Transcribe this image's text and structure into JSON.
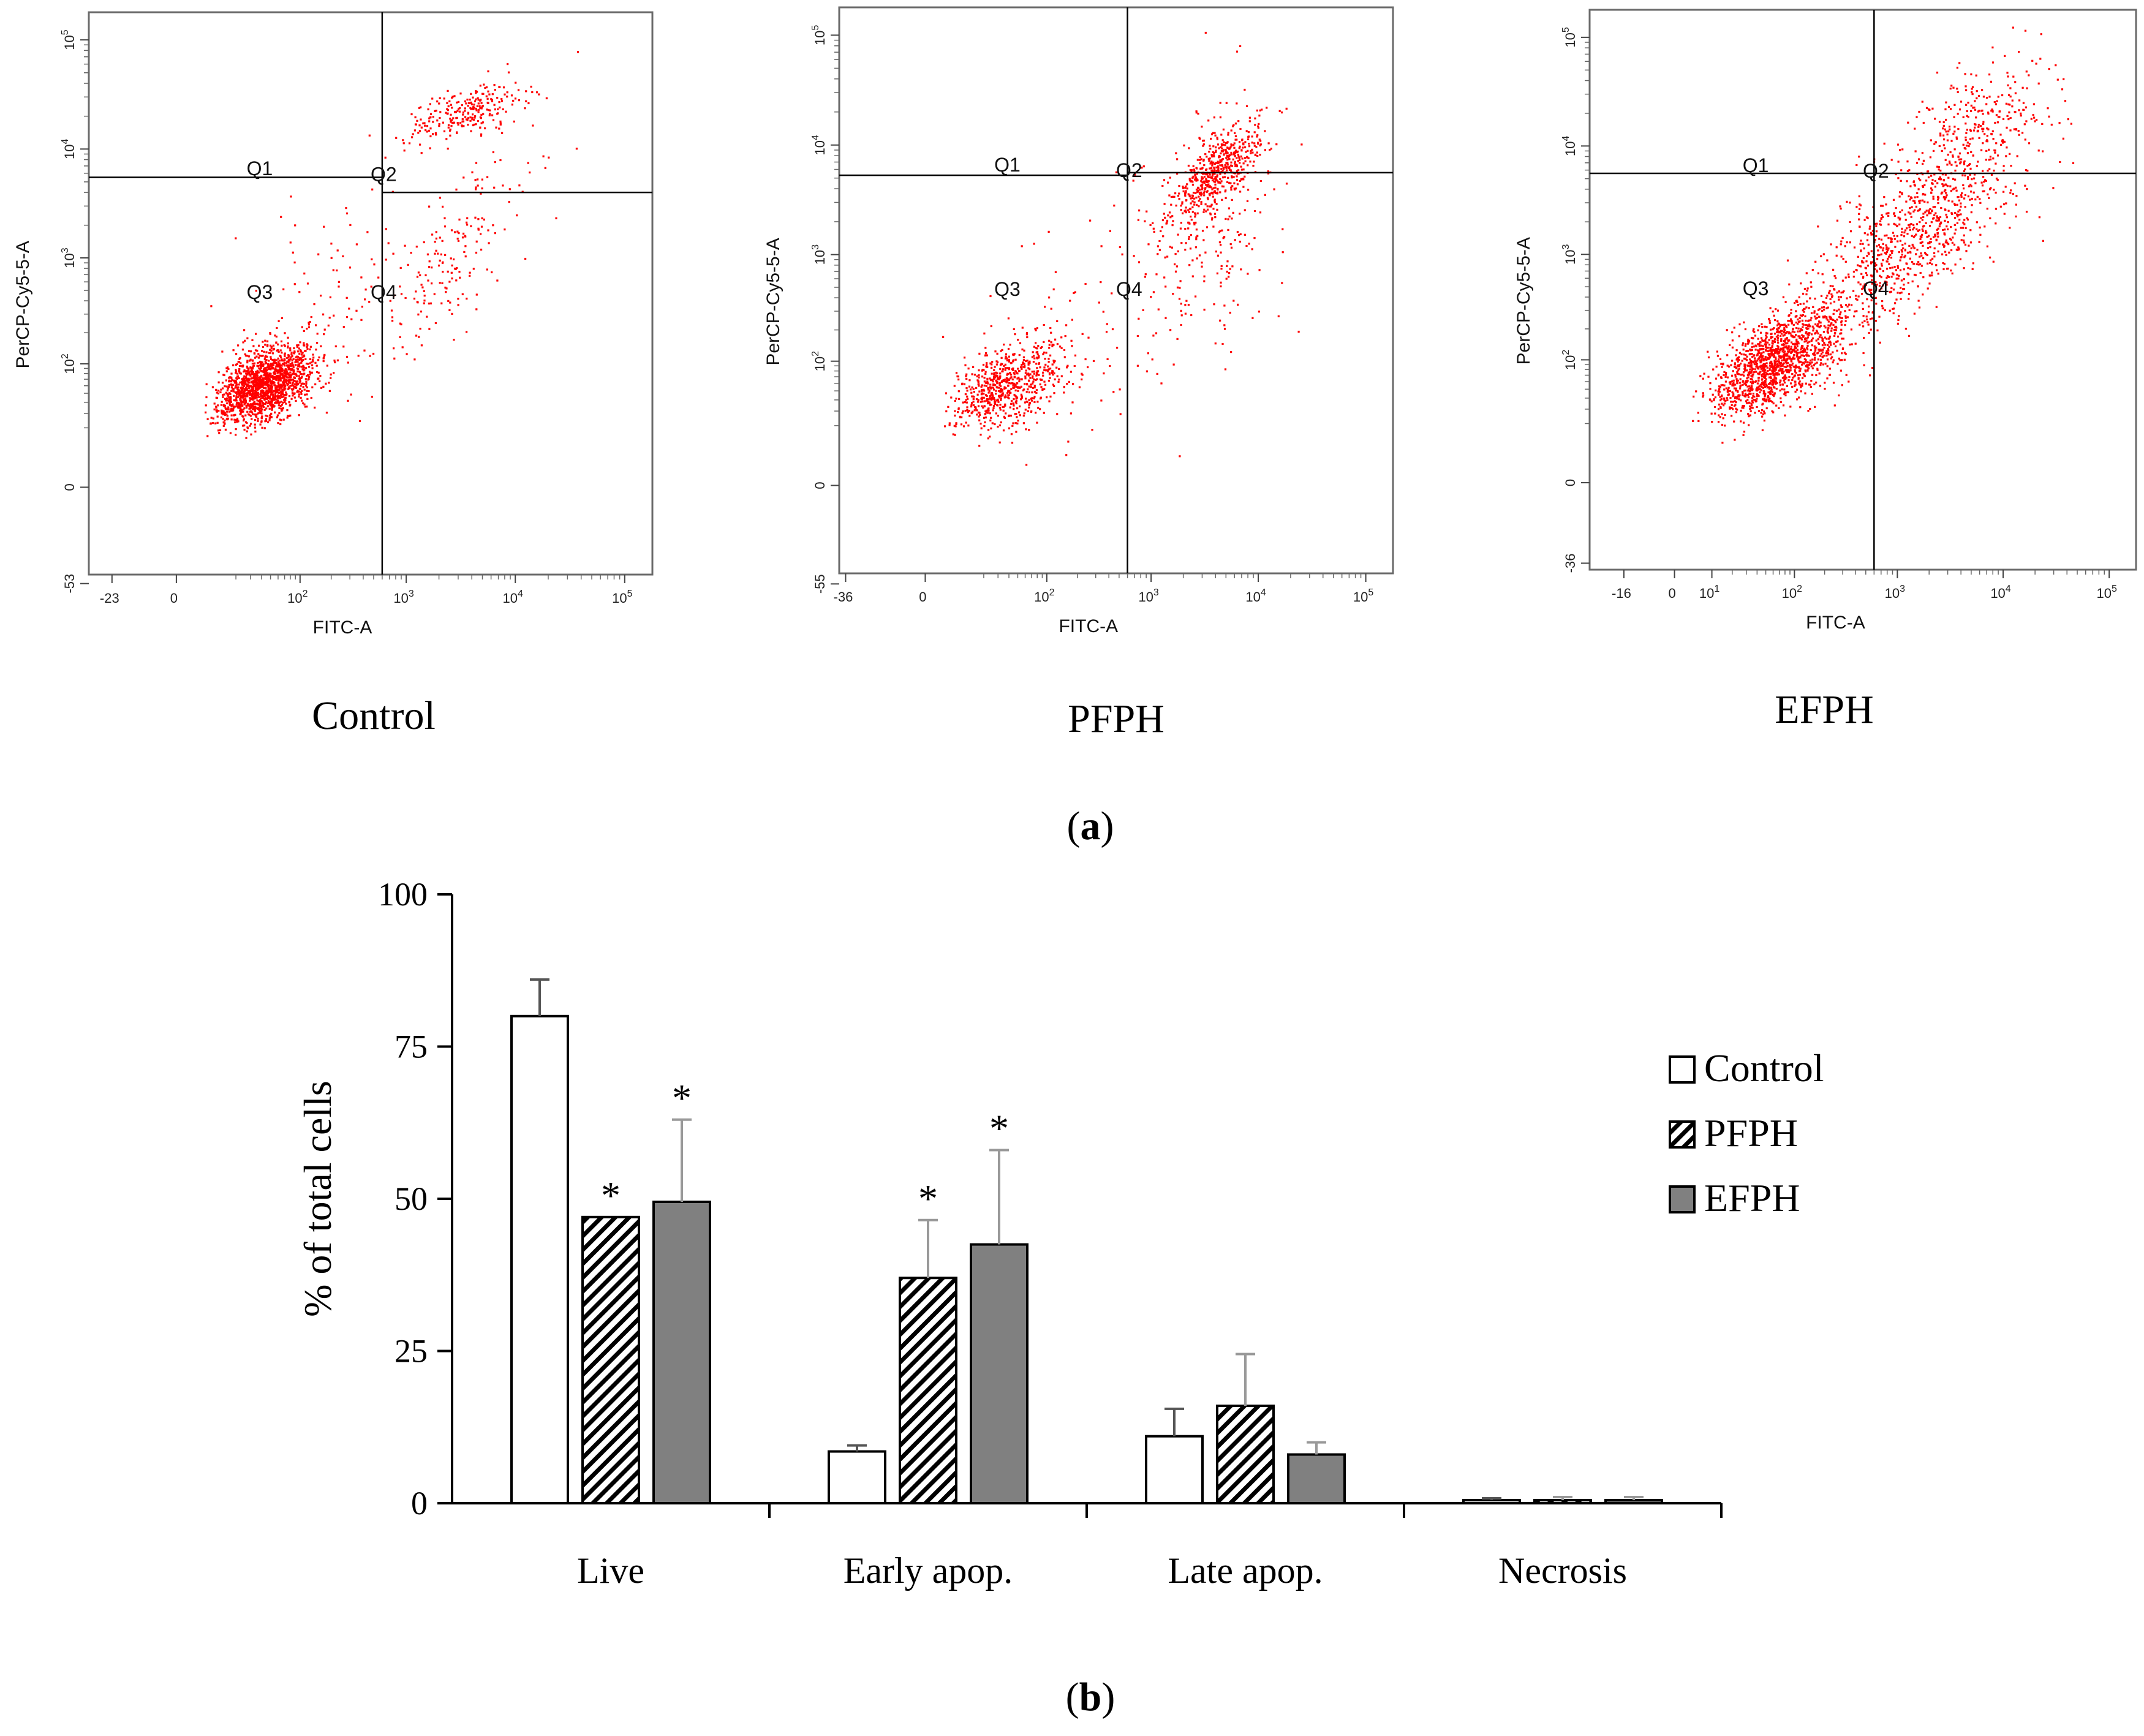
{
  "panel_labels": {
    "a": "a",
    "b": "b"
  },
  "chart_data": [
    {
      "type": "scatter",
      "title": "Control",
      "xlabel": "FITC-A",
      "ylabel": "PerCP-Cy5-5-A",
      "x_ticks": [
        {
          "main": "-23",
          "value": -23
        },
        {
          "main": "0",
          "value": 0
        },
        {
          "main": "10",
          "sup": "2",
          "value": 100
        },
        {
          "main": "10",
          "sup": "3",
          "value": 1000
        },
        {
          "main": "10",
          "sup": "4",
          "value": 10000
        },
        {
          "main": "10",
          "sup": "5",
          "value": 100000
        }
      ],
      "y_ticks": [
        {
          "main": "-53",
          "value": -53
        },
        {
          "main": "0",
          "value": 0
        },
        {
          "main": "10",
          "sup": "2",
          "value": 100
        },
        {
          "main": "10",
          "sup": "3",
          "value": 1000
        },
        {
          "main": "10",
          "sup": "4",
          "value": 10000
        },
        {
          "main": "10",
          "sup": "5",
          "value": 100000
        }
      ],
      "quadrants": [
        "Q1",
        "Q2",
        "Q3",
        "Q4"
      ],
      "gate": {
        "x": 600,
        "y_left": 5500,
        "y_right": 4000
      },
      "point_color": "#ff0000"
    },
    {
      "type": "scatter",
      "title": "PFPH",
      "xlabel": "FITC-A",
      "ylabel": "PerCP-Cy5-5-A",
      "x_ticks": [
        {
          "main": "-36",
          "value": -36
        },
        {
          "main": "0",
          "value": 0
        },
        {
          "main": "10",
          "sup": "2",
          "value": 100
        },
        {
          "main": "10",
          "sup": "3",
          "value": 1000
        },
        {
          "main": "10",
          "sup": "4",
          "value": 10000
        },
        {
          "main": "10",
          "sup": "5",
          "value": 100000
        }
      ],
      "y_ticks": [
        {
          "main": "-55",
          "value": -55
        },
        {
          "main": "0",
          "value": 0
        },
        {
          "main": "10",
          "sup": "2",
          "value": 100
        },
        {
          "main": "10",
          "sup": "3",
          "value": 1000
        },
        {
          "main": "10",
          "sup": "4",
          "value": 10000
        },
        {
          "main": "10",
          "sup": "5",
          "value": 100000
        }
      ],
      "quadrants": [
        "Q1",
        "Q2",
        "Q3",
        "Q4"
      ],
      "gate": {
        "x": 600,
        "y_left": 5300,
        "y_right": 5600
      },
      "point_color": "#ff0000"
    },
    {
      "type": "scatter",
      "title": "EFPH",
      "xlabel": "FITC-A",
      "ylabel": "PerCP-Cy5-5-A",
      "x_ticks": [
        {
          "main": "-16",
          "value": -16
        },
        {
          "main": "0",
          "value": 0
        },
        {
          "main": "10",
          "sup": "1",
          "value": 10
        },
        {
          "main": "10",
          "sup": "2",
          "value": 100
        },
        {
          "main": "10",
          "sup": "3",
          "value": 1000
        },
        {
          "main": "10",
          "sup": "4",
          "value": 10000
        },
        {
          "main": "10",
          "sup": "5",
          "value": 100000
        }
      ],
      "y_ticks": [
        {
          "main": "-36",
          "value": -36
        },
        {
          "main": "0",
          "value": 0
        },
        {
          "main": "10",
          "sup": "2",
          "value": 100
        },
        {
          "main": "10",
          "sup": "3",
          "value": 1000
        },
        {
          "main": "10",
          "sup": "4",
          "value": 10000
        },
        {
          "main": "10",
          "sup": "5",
          "value": 100000
        }
      ],
      "quadrants": [
        "Q1",
        "Q2",
        "Q3",
        "Q4"
      ],
      "gate": {
        "x": 600,
        "y_left": 5600,
        "y_right": 5600
      },
      "point_color": "#ff0000"
    },
    {
      "type": "bar",
      "ylabel": "% of total cells",
      "ylim": [
        0,
        100
      ],
      "yticks": [
        0,
        25,
        50,
        75,
        100
      ],
      "categories": [
        "Live",
        "Early apop.",
        "Late apop.",
        "Necrosis"
      ],
      "series": [
        {
          "name": "Control",
          "values": [
            80,
            8.5,
            11,
            0.5
          ],
          "errors": [
            6,
            1,
            4.5,
            0.3
          ],
          "significant": [
            false,
            false,
            false,
            false
          ],
          "color": "#ffffff",
          "pattern": "none"
        },
        {
          "name": "PFPH",
          "values": [
            47,
            37,
            16,
            0.5
          ],
          "errors": [
            0,
            9.5,
            8.5,
            0.5
          ],
          "significant": [
            true,
            true,
            false,
            false
          ],
          "color": "#ffffff",
          "pattern": "hatch"
        },
        {
          "name": "EFPH",
          "values": [
            49.5,
            42.5,
            8,
            0.5
          ],
          "errors": [
            13.5,
            15.5,
            2,
            0.5
          ],
          "significant": [
            true,
            true,
            false,
            false
          ],
          "color": "#808080",
          "pattern": "none"
        }
      ],
      "significance_marker": "*"
    }
  ]
}
